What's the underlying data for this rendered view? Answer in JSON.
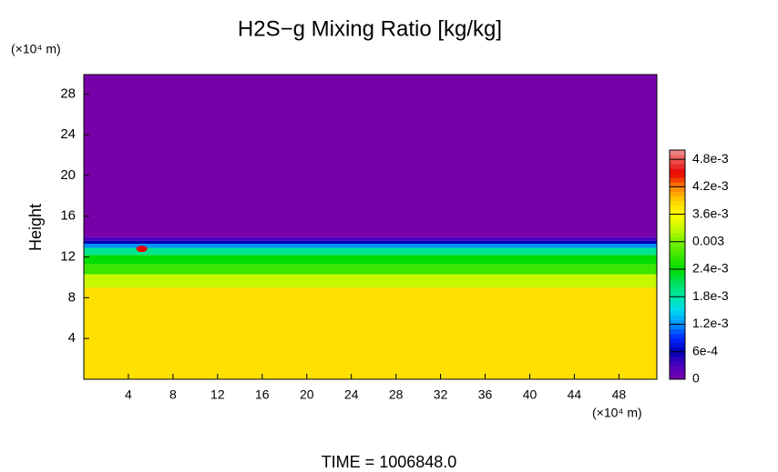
{
  "chart_data": {
    "type": "heatmap",
    "title": "H2S−g Mixing Ratio [kg/kg]",
    "ylabel": "Height",
    "x_unit": "(×10⁴ m)",
    "y_unit": "(×10⁴ m)",
    "footer": "TIME = 1006848.0",
    "xlim": [
      0,
      51.4
    ],
    "ylim": [
      0,
      29.9
    ],
    "xticks": [
      4,
      8,
      12,
      16,
      20,
      24,
      28,
      32,
      36,
      40,
      44,
      48
    ],
    "yticks": [
      4,
      8,
      12,
      16,
      20,
      24,
      28
    ],
    "y_bins": [
      0,
      9,
      10.3,
      11.3,
      12.2,
      12.9,
      13.3,
      13.6,
      14,
      29.9
    ],
    "values": [
      0.0038,
      0.0033,
      0.0027,
      0.0024,
      0.0019,
      0.0012,
      0.0006,
      0.0003,
      0
    ],
    "hotspot": {
      "x": 5.2,
      "y": 12.8,
      "value": 0.0045
    },
    "zlim": [
      0,
      0.005
    ],
    "zticks": [
      0,
      0.0006,
      0.0012,
      0.0018,
      0.0024,
      0.003,
      0.0036,
      0.0042,
      0.0048
    ],
    "zticks_labels": [
      "0",
      "6e-4",
      "1.2e-3",
      "1.8e-3",
      "2.4e-3",
      "0.003",
      "3.6e-3",
      "4.2e-3",
      "4.8e-3"
    ],
    "colorscale": [
      [
        0,
        "#7800a8"
      ],
      [
        0.0003,
        "#5000c0"
      ],
      [
        0.0006,
        "#0000b4"
      ],
      [
        0.0009,
        "#0028ff"
      ],
      [
        0.0012,
        "#0090ff"
      ],
      [
        0.0015,
        "#00d8f0"
      ],
      [
        0.0018,
        "#00e8a8"
      ],
      [
        0.0021,
        "#00e060"
      ],
      [
        0.0024,
        "#00dc00"
      ],
      [
        0.003,
        "#78f000"
      ],
      [
        0.0033,
        "#c8f800"
      ],
      [
        0.0036,
        "#ffff00"
      ],
      [
        0.0039,
        "#ffd000"
      ],
      [
        0.0042,
        "#ff8000"
      ],
      [
        0.0045,
        "#e80000"
      ],
      [
        0.005,
        "#f09090"
      ]
    ]
  }
}
